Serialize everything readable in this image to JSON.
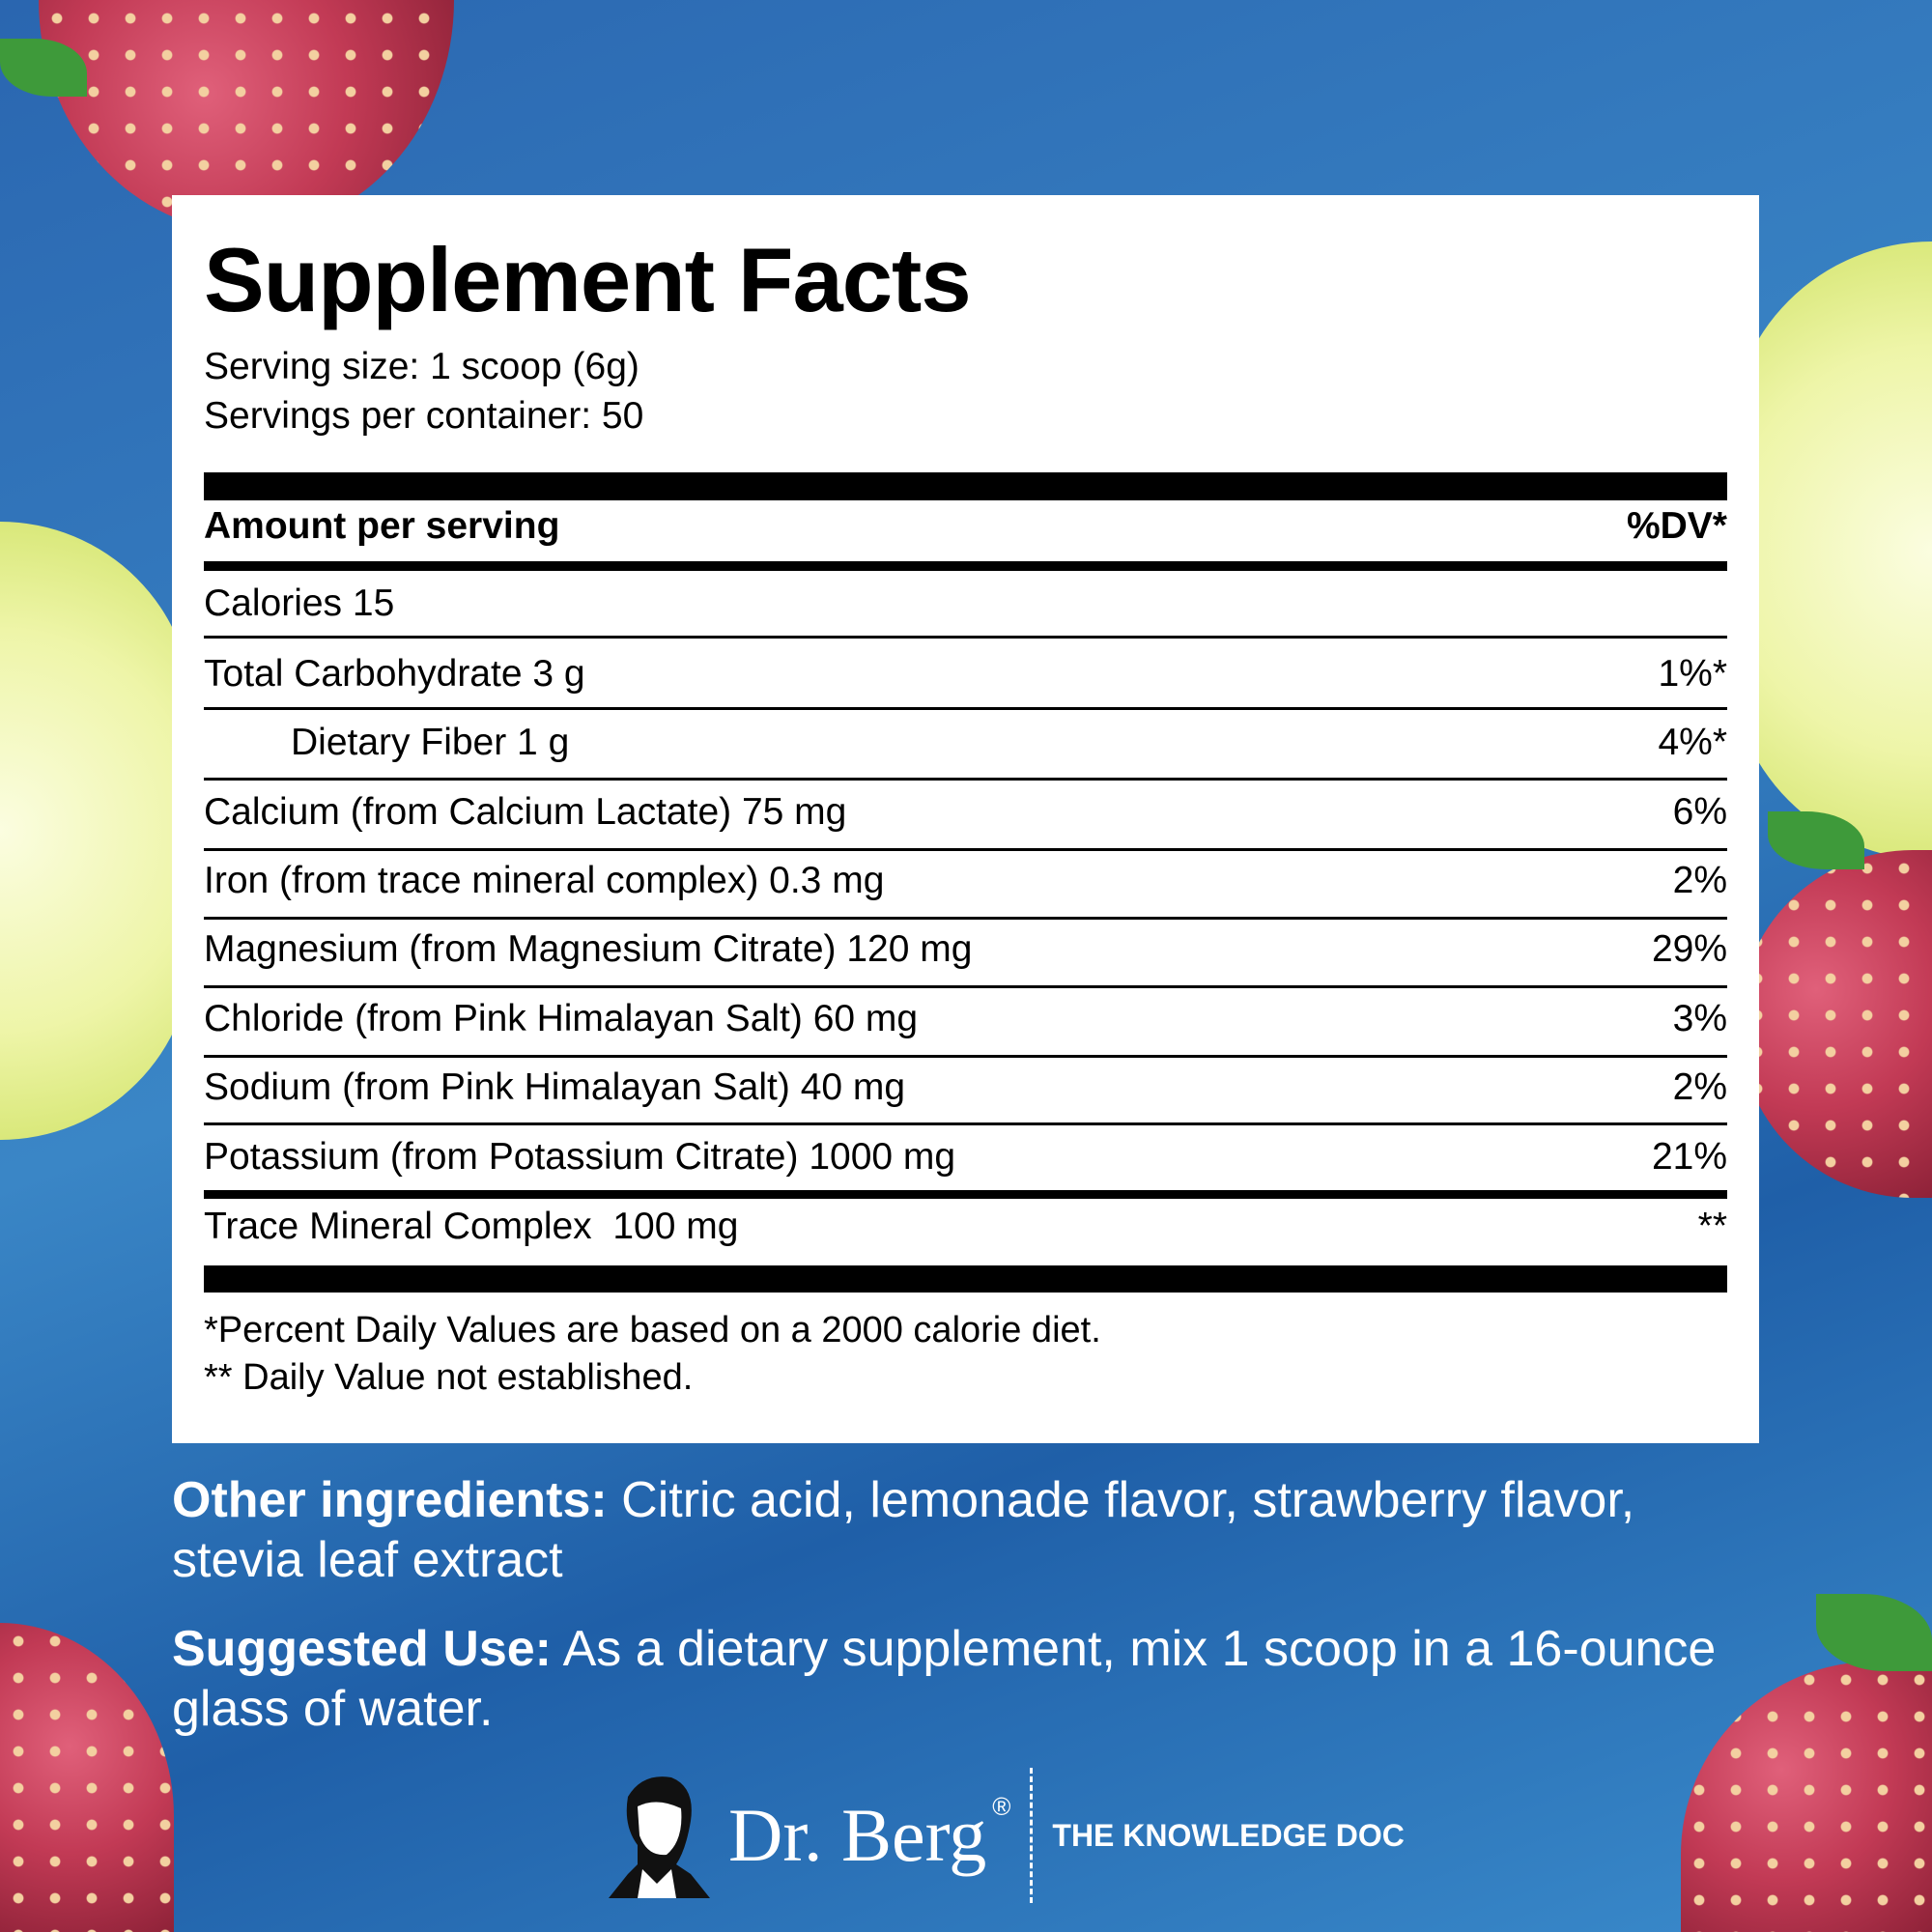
{
  "title": "Supplement Facts",
  "serving_size": "Serving size: 1 scoop (6g)",
  "servings_per_container": "Servings per container: 50",
  "header": {
    "amount": "Amount per serving",
    "dv": "%DV*"
  },
  "calories": "Calories 15",
  "rows": [
    {
      "label": "Total Carbohydrate 3 g",
      "dv": "1%*"
    },
    {
      "label": "Dietary Fiber 1 g",
      "dv": "4%*"
    },
    {
      "label": "Calcium (from Calcium Lactate) 75 mg",
      "dv": "6%"
    },
    {
      "label": "Iron (from trace mineral complex) 0.3 mg",
      "dv": "2%"
    },
    {
      "label": "Magnesium (from Magnesium Citrate) 120 mg",
      "dv": "29%"
    },
    {
      "label": "Chloride (from Pink Himalayan Salt) 60 mg",
      "dv": "3%"
    },
    {
      "label": "Sodium (from Pink Himalayan Salt) 40 mg",
      "dv": "2%"
    },
    {
      "label": "Potassium (from Potassium Citrate) 1000 mg",
      "dv": "21%"
    }
  ],
  "trace": {
    "label": "Trace Mineral Complex  100 mg",
    "dv": "**"
  },
  "footnotes": [
    "*Percent Daily Values are based on a 2000 calorie diet.",
    "** Daily Value not established."
  ],
  "other_ingredients": {
    "label": "Other ingredients:",
    "text": " Citric acid, lemonade flavor, strawberry flavor, stevia leaf extract"
  },
  "suggested_use": {
    "label": "Suggested Use:",
    "text": " As a dietary supplement, mix 1 scoop in a 16-ounce glass of water."
  },
  "brand": {
    "name": "Dr. Berg",
    "registered": "®",
    "tagline": "THE KNOWLEDGE DOC"
  },
  "colors": {
    "background": "#2f75bb",
    "panel": "#ffffff",
    "text_on_blue": "#ffffff"
  }
}
